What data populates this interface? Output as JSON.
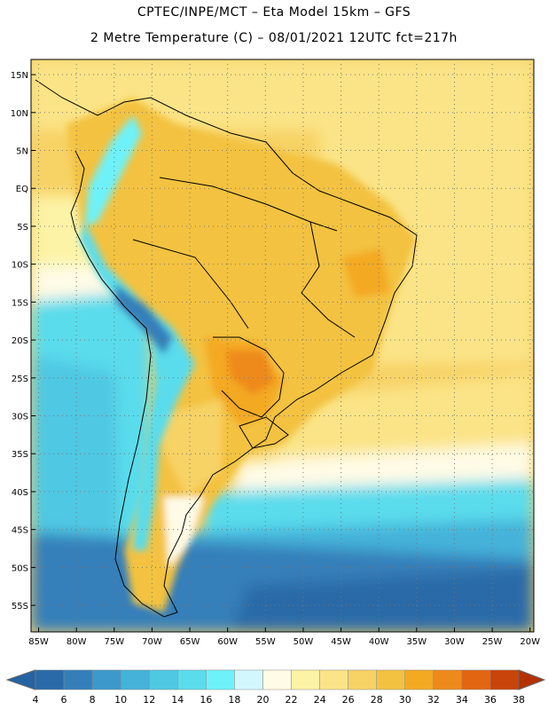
{
  "header": {
    "line1": "CPTEC/INPE/MCT –  Eta Model 15km – GFS",
    "line2": "2 Metre Temperature (C) – 08/01/2021 12UTC fct=217h"
  },
  "map": {
    "lat_labels": [
      "15N",
      "10N",
      "5N",
      "EQ",
      "5S",
      "10S",
      "15S",
      "20S",
      "25S",
      "30S",
      "35S",
      "40S",
      "45S",
      "50S",
      "55S"
    ],
    "lon_labels": [
      "85W",
      "80W",
      "75W",
      "70W",
      "65W",
      "60W",
      "55W",
      "50W",
      "45W",
      "40W",
      "35W",
      "30W",
      "25W",
      "20W"
    ],
    "lat_values": [
      15,
      10,
      5,
      0,
      -5,
      -10,
      -15,
      -20,
      -25,
      -30,
      -35,
      -40,
      -45,
      -50,
      -55
    ],
    "lon_values": [
      -85,
      -80,
      -75,
      -70,
      -65,
      -60,
      -55,
      -50,
      -45,
      -40,
      -35,
      -30,
      -25,
      -20
    ]
  },
  "colorbar": {
    "labels": [
      "4",
      "6",
      "8",
      "10",
      "12",
      "14",
      "16",
      "18",
      "20",
      "22",
      "24",
      "26",
      "28",
      "30",
      "32",
      "34",
      "36",
      "38"
    ],
    "colors": [
      "#2b6aa8",
      "#347fba",
      "#3d99cc",
      "#45b2d9",
      "#4fc8e3",
      "#5adcec",
      "#6ef2f9",
      "#d2f7fc",
      "#fffbe6",
      "#fdf3a6",
      "#fbe487",
      "#f7d265",
      "#f3c241",
      "#f4a922",
      "#ee8a1c",
      "#e26612",
      "#c9440a"
    ],
    "low_end_color": "#2563a3",
    "high_end_color": "#b33205"
  }
}
